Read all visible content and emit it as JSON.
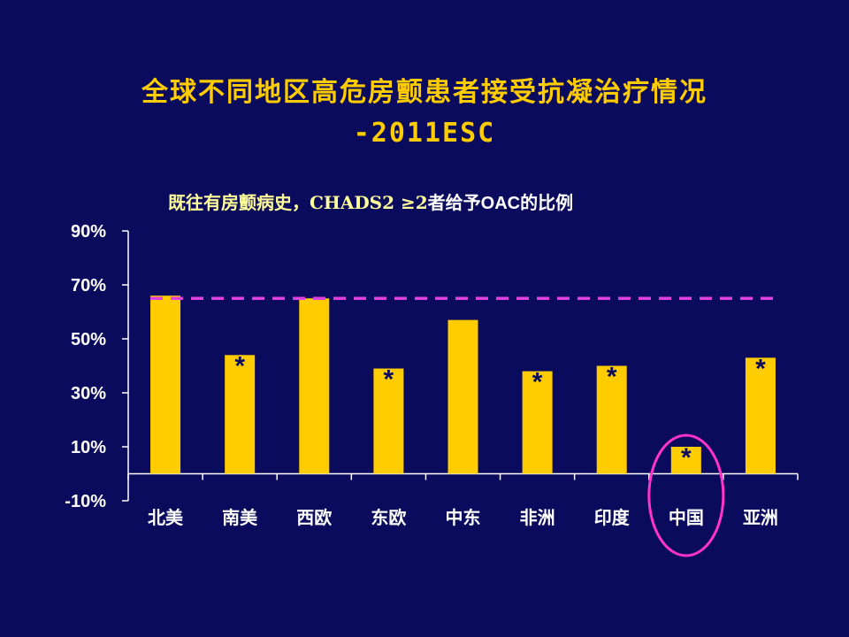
{
  "slide": {
    "title_line1": "全球不同地区高危房颤患者接受抗凝治疗情况",
    "title_line2": "-2011ESC",
    "subtitle_part1": "既往有房颤病史，CHADS2 ≥2",
    "subtitle_part2": "者给予OAC的比例"
  },
  "colors": {
    "background": "#0b0b5e",
    "bar": "#ffcc00",
    "reference_line": "#e040e0",
    "highlight_circle": "#ff33cc",
    "title": "#ffcc00"
  },
  "chart_data": {
    "type": "bar",
    "title": "既往有房颤病史，CHADS2 ≥2者给予OAC的比例",
    "xlabel": "",
    "ylabel": "",
    "categories": [
      "北美",
      "南美",
      "西欧",
      "东欧",
      "中东",
      "非洲",
      "印度",
      "中国",
      "亚洲"
    ],
    "values": [
      66,
      44,
      65,
      39,
      57,
      38,
      40,
      10,
      43
    ],
    "asterisk": [
      false,
      true,
      false,
      true,
      false,
      true,
      true,
      true,
      true
    ],
    "asterisk_symbol": "*",
    "ylim": [
      -10,
      90
    ],
    "yticks": [
      90,
      70,
      50,
      30,
      10,
      -10
    ],
    "ytick_labels": [
      "90%",
      "70%",
      "50%",
      "30%",
      "10%",
      "-10%"
    ],
    "reference_line": 65,
    "highlighted_category": "中国",
    "grid": false,
    "legend": "none"
  }
}
